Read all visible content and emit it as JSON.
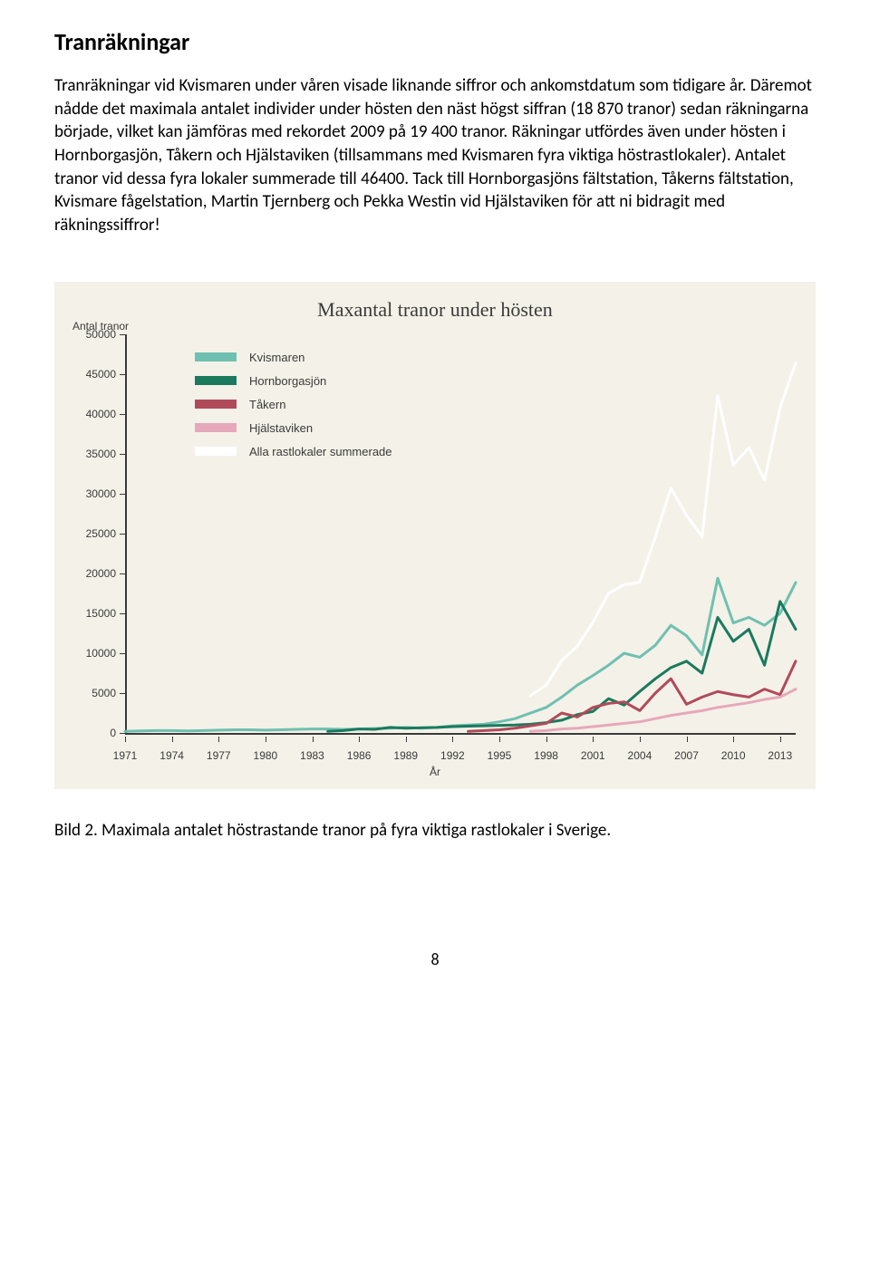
{
  "heading": "Tranräkningar",
  "body": "Tranräkningar vid Kvismaren under våren visade liknande siffror och ankomstdatum som tidigare år. Däremot nådde det maximala antalet individer under hösten den näst högst siffran (18 870 tranor) sedan räkningarna började, vilket kan jämföras med rekordet 2009 på 19 400 tranor. Räkningar utfördes även under hösten i Hornborgasjön, Tåkern och Hjälstaviken (tillsammans med Kvismaren fyra viktiga höstrastlokaler). Antalet tranor vid dessa fyra lokaler summerade till 46400. Tack till Hornborgasjöns fältstation, Tåkerns fältstation, Kvismare fågelstation, Martin Tjernberg och Pekka Westin vid Hjälstaviken för att ni bidragit med räkningssiffror!",
  "chart": {
    "title": "Maxantal tranor under hösten",
    "y_label": "Antal tranor",
    "x_label": "År",
    "background_color": "#f4f1e8",
    "text_color": "#3a3a3a",
    "title_font": "Georgia, serif",
    "title_fontsize": 22,
    "label_fontsize": 12,
    "line_width": 3,
    "ylim": [
      0,
      50000
    ],
    "ytick_step": 5000,
    "y_ticks": [
      "0",
      "5000",
      "10000",
      "15000",
      "20000",
      "25000",
      "30000",
      "35000",
      "40000",
      "45000",
      "50000"
    ],
    "xlim": [
      1971,
      2014
    ],
    "x_ticks": [
      1971,
      1974,
      1977,
      1980,
      1983,
      1986,
      1989,
      1992,
      1995,
      1998,
      2001,
      2004,
      2007,
      2010,
      2013
    ],
    "legend": [
      {
        "label": "Kvismaren",
        "color": "#6fc0b0"
      },
      {
        "label": "Hornborgasjön",
        "color": "#1a7a5e"
      },
      {
        "label": "Tåkern",
        "color": "#b04a5a"
      },
      {
        "label": "Hjälstaviken",
        "color": "#e6a8bb"
      },
      {
        "label": "Alla rastlokaler summerade",
        "color": "#ffffff"
      }
    ],
    "series": {
      "kvismaren": {
        "color": "#6fc0b0",
        "points": [
          [
            1971,
            200
          ],
          [
            1972,
            250
          ],
          [
            1973,
            300
          ],
          [
            1974,
            300
          ],
          [
            1975,
            250
          ],
          [
            1976,
            300
          ],
          [
            1977,
            350
          ],
          [
            1978,
            400
          ],
          [
            1979,
            400
          ],
          [
            1980,
            350
          ],
          [
            1981,
            400
          ],
          [
            1982,
            450
          ],
          [
            1983,
            500
          ],
          [
            1984,
            500
          ],
          [
            1985,
            450
          ],
          [
            1986,
            500
          ],
          [
            1987,
            550
          ],
          [
            1988,
            600
          ],
          [
            1989,
            700
          ],
          [
            1990,
            600
          ],
          [
            1991,
            700
          ],
          [
            1992,
            900
          ],
          [
            1993,
            1000
          ],
          [
            1994,
            1100
          ],
          [
            1995,
            1400
          ],
          [
            1996,
            1800
          ],
          [
            1997,
            2500
          ],
          [
            1998,
            3200
          ],
          [
            1999,
            4500
          ],
          [
            2000,
            6000
          ],
          [
            2001,
            7200
          ],
          [
            2002,
            8500
          ],
          [
            2003,
            10000
          ],
          [
            2004,
            9500
          ],
          [
            2005,
            11000
          ],
          [
            2006,
            13500
          ],
          [
            2007,
            12200
          ],
          [
            2008,
            9800
          ],
          [
            2009,
            19400
          ],
          [
            2010,
            13800
          ],
          [
            2011,
            14500
          ],
          [
            2012,
            13500
          ],
          [
            2013,
            15000
          ],
          [
            2014,
            18870
          ]
        ]
      },
      "hornborgasjon": {
        "color": "#1a7a5e",
        "points": [
          [
            1984,
            200
          ],
          [
            1985,
            300
          ],
          [
            1986,
            500
          ],
          [
            1987,
            450
          ],
          [
            1988,
            700
          ],
          [
            1989,
            600
          ],
          [
            1990,
            650
          ],
          [
            1991,
            700
          ],
          [
            1992,
            800
          ],
          [
            1993,
            850
          ],
          [
            1994,
            900
          ],
          [
            1995,
            950
          ],
          [
            1996,
            1000
          ],
          [
            1997,
            1100
          ],
          [
            1998,
            1300
          ],
          [
            1999,
            1600
          ],
          [
            2000,
            2300
          ],
          [
            2001,
            2700
          ],
          [
            2002,
            4300
          ],
          [
            2003,
            3500
          ],
          [
            2004,
            5200
          ],
          [
            2005,
            6800
          ],
          [
            2006,
            8200
          ],
          [
            2007,
            9000
          ],
          [
            2008,
            7500
          ],
          [
            2009,
            14500
          ],
          [
            2010,
            11500
          ],
          [
            2011,
            13000
          ],
          [
            2012,
            8500
          ],
          [
            2013,
            16500
          ],
          [
            2014,
            13000
          ]
        ]
      },
      "takern": {
        "color": "#b04a5a",
        "points": [
          [
            1993,
            200
          ],
          [
            1994,
            300
          ],
          [
            1995,
            400
          ],
          [
            1996,
            600
          ],
          [
            1997,
            900
          ],
          [
            1998,
            1200
          ],
          [
            1999,
            2500
          ],
          [
            2000,
            2000
          ],
          [
            2001,
            3200
          ],
          [
            2002,
            3700
          ],
          [
            2003,
            3900
          ],
          [
            2004,
            2800
          ],
          [
            2005,
            5000
          ],
          [
            2006,
            6800
          ],
          [
            2007,
            3600
          ],
          [
            2008,
            4500
          ],
          [
            2009,
            5200
          ],
          [
            2010,
            4800
          ],
          [
            2011,
            4500
          ],
          [
            2012,
            5500
          ],
          [
            2013,
            4800
          ],
          [
            2014,
            9000
          ]
        ]
      },
      "hjalstaviken": {
        "color": "#e6a8bb",
        "points": [
          [
            1997,
            200
          ],
          [
            1998,
            300
          ],
          [
            1999,
            500
          ],
          [
            2000,
            600
          ],
          [
            2001,
            800
          ],
          [
            2002,
            1000
          ],
          [
            2003,
            1200
          ],
          [
            2004,
            1400
          ],
          [
            2005,
            1800
          ],
          [
            2006,
            2200
          ],
          [
            2007,
            2500
          ],
          [
            2008,
            2800
          ],
          [
            2009,
            3200
          ],
          [
            2010,
            3500
          ],
          [
            2011,
            3800
          ],
          [
            2012,
            4200
          ],
          [
            2013,
            4500
          ],
          [
            2014,
            5500
          ]
        ]
      },
      "summa": {
        "color": "#ffffff",
        "points": [
          [
            1997,
            4700
          ],
          [
            1998,
            6000
          ],
          [
            1999,
            9100
          ],
          [
            2000,
            10900
          ],
          [
            2001,
            13900
          ],
          [
            2002,
            17500
          ],
          [
            2003,
            18600
          ],
          [
            2004,
            18900
          ],
          [
            2005,
            24600
          ],
          [
            2006,
            30700
          ],
          [
            2007,
            27300
          ],
          [
            2008,
            24600
          ],
          [
            2009,
            42300
          ],
          [
            2010,
            33600
          ],
          [
            2011,
            35800
          ],
          [
            2012,
            31700
          ],
          [
            2013,
            40800
          ],
          [
            2014,
            46400
          ]
        ]
      }
    }
  },
  "caption": "Bild 2. Maximala antalet höstrastande tranor på fyra viktiga rastlokaler i Sverige.",
  "page_number": "8"
}
